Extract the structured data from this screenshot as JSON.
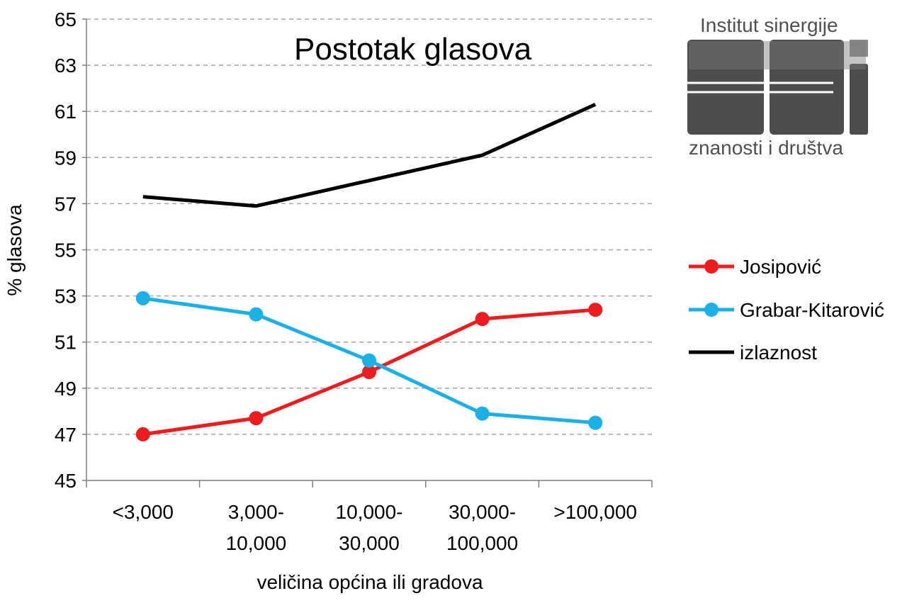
{
  "chart_data": {
    "type": "line",
    "title": "Postotak glasova",
    "xlabel": "veličina općina ili gradova",
    "ylabel": "% glasova",
    "categories": [
      [
        "<3,000"
      ],
      [
        "3,000-",
        "10,000"
      ],
      [
        "10,000-",
        "30,000"
      ],
      [
        "30,000-",
        "100,000"
      ],
      [
        ">100,000"
      ]
    ],
    "ylim": [
      45,
      65
    ],
    "yticks": [
      45,
      47,
      49,
      51,
      53,
      55,
      57,
      59,
      61,
      63,
      65
    ],
    "grid": true,
    "legend_position": "right",
    "series": [
      {
        "name": "Josipović",
        "color": "#ee1c1c",
        "markers": true,
        "values": [
          47.0,
          47.7,
          49.7,
          52.0,
          52.4
        ]
      },
      {
        "name": "Grabar-Kitarović",
        "color": "#1cb1e6",
        "markers": true,
        "values": [
          52.9,
          52.2,
          50.2,
          47.9,
          47.5
        ]
      },
      {
        "name": "izlaznost",
        "color": "#000000",
        "markers": false,
        "values": [
          57.3,
          56.9,
          58.0,
          59.1,
          61.3
        ]
      }
    ]
  },
  "logo": {
    "text_top": "Institut sinergije",
    "text_bottom": "znanosti i društva",
    "mark": "ISZD"
  }
}
